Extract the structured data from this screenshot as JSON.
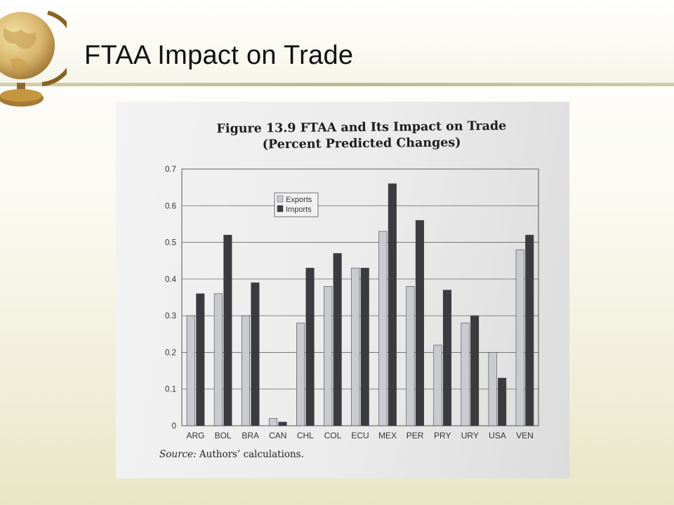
{
  "slide": {
    "title": "FTAA Impact on Trade"
  },
  "figure": {
    "title_line1": "Figure 13.9  FTAA and Its Impact on Trade",
    "title_line2": "(Percent Predicted Changes)",
    "source_label": "Source:",
    "source_text": " Authors’ calculations."
  },
  "colors": {
    "exports": "#c9cbd1",
    "imports": "#3a3a3f"
  },
  "chart_data": {
    "type": "bar",
    "title": "Figure 13.9  FTAA and Its Impact on Trade",
    "subtitle": "(Percent Predicted Changes)",
    "xlabel": "",
    "ylabel": "",
    "categories": [
      "ARG",
      "BOL",
      "BRA",
      "CAN",
      "CHL",
      "COL",
      "ECU",
      "MEX",
      "PER",
      "PRY",
      "URY",
      "USA",
      "VEN"
    ],
    "series": [
      {
        "name": "Exports",
        "values": [
          0.3,
          0.36,
          0.3,
          0.02,
          0.28,
          0.38,
          0.43,
          0.53,
          0.38,
          0.22,
          0.28,
          0.2,
          0.48
        ]
      },
      {
        "name": "Imports",
        "values": [
          0.36,
          0.52,
          0.39,
          0.01,
          0.43,
          0.47,
          0.43,
          0.66,
          0.56,
          0.37,
          0.3,
          0.13,
          0.52
        ]
      }
    ],
    "ylim": [
      0,
      0.7
    ],
    "yticks": [
      "0",
      "0.1",
      "0.2",
      "0.3",
      "0.4",
      "0.5",
      "0.6",
      "0.7"
    ],
    "grid": true,
    "legend": "top-left"
  }
}
